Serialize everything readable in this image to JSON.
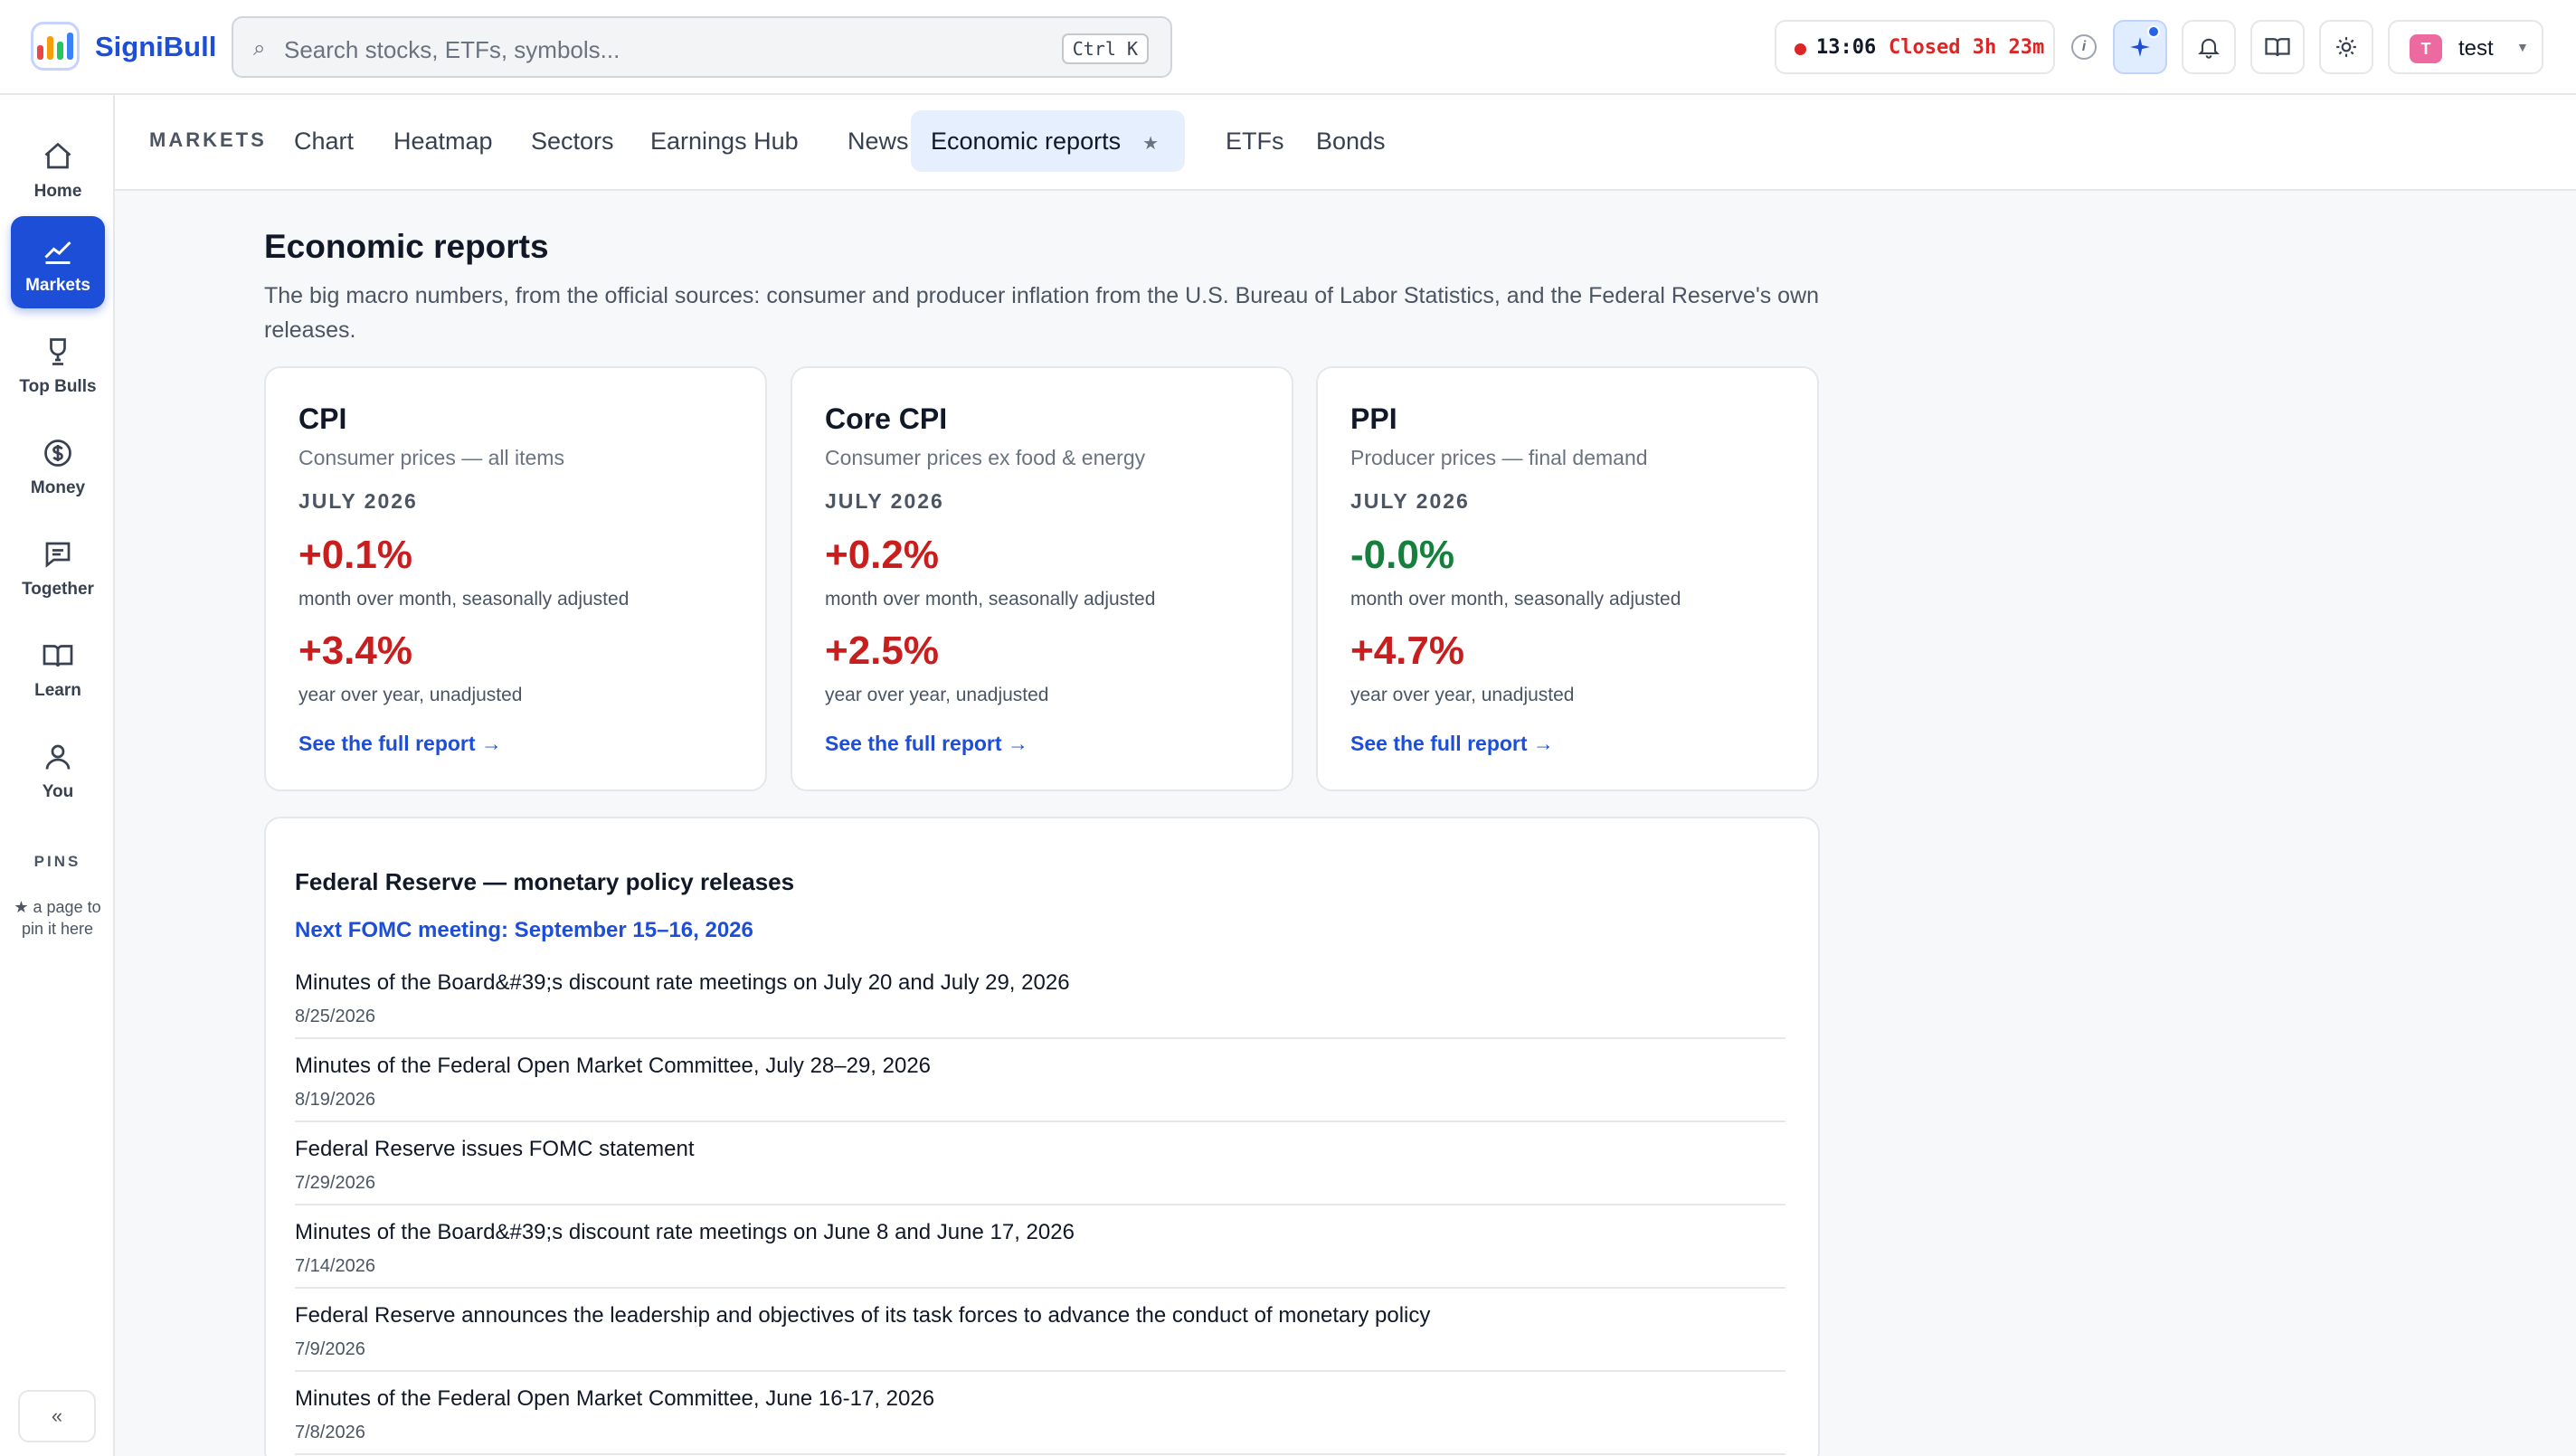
{
  "app": {
    "name": "SigniBull"
  },
  "search": {
    "placeholder": "Search stocks, ETFs, symbols...",
    "shortcut": "Ctrl K"
  },
  "market_clock": {
    "time": "13:06",
    "status": "Closed 3h 23m",
    "status_color": "#dc2626"
  },
  "user": {
    "initial": "T",
    "name": "test"
  },
  "sidebar": {
    "items": [
      {
        "label": "Home",
        "icon": "home-icon"
      },
      {
        "label": "Markets",
        "icon": "chart-line-icon",
        "active": true
      },
      {
        "label": "Top Bulls",
        "icon": "trophy-icon"
      },
      {
        "label": "Money",
        "icon": "dollar-circle-icon"
      },
      {
        "label": "Together",
        "icon": "chat-icon"
      },
      {
        "label": "Learn",
        "icon": "book-icon"
      },
      {
        "label": "You",
        "icon": "user-icon"
      }
    ],
    "pins_title": "PINS",
    "pins_hint": "★ a page to pin it here",
    "collapse_label": "«"
  },
  "tabs": {
    "section": "MARKETS",
    "items": [
      {
        "label": "Chart"
      },
      {
        "label": "Heatmap"
      },
      {
        "label": "Sectors"
      },
      {
        "label": "Earnings Hub"
      },
      {
        "label": "News"
      },
      {
        "label": "Economic reports",
        "active": true
      },
      {
        "label": "ETFs"
      },
      {
        "label": "Bonds"
      }
    ],
    "pin_star": "★"
  },
  "page": {
    "title": "Economic reports",
    "description": "The big macro numbers, from the official sources: consumer and producer inflation from the U.S. Bureau of Labor Statistics, and the Federal Reserve's own releases."
  },
  "cards": [
    {
      "title": "CPI",
      "subtitle": "Consumer prices — all items",
      "period": "JULY 2026",
      "mom": "+0.1%",
      "mom_note": "month over month, seasonally adjusted",
      "yoy": "+3.4%",
      "yoy_note": "year over year, unadjusted",
      "link": "See the full report →"
    },
    {
      "title": "Core CPI",
      "subtitle": "Consumer prices ex food & energy",
      "period": "JULY 2026",
      "mom": "+0.2%",
      "mom_note": "month over month, seasonally adjusted",
      "yoy": "+2.5%",
      "yoy_note": "year over year, unadjusted",
      "link": "See the full report →"
    },
    {
      "title": "PPI",
      "subtitle": "Producer prices — final demand",
      "period": "JULY 2026",
      "mom": "-0.0%",
      "mom_note": "month over month, seasonally adjusted",
      "yoy": "+4.7%",
      "yoy_note": "year over year, unadjusted",
      "link": "See the full report →"
    }
  ],
  "colors": {
    "up": "#c81e1e",
    "down": "#15803d",
    "accent": "#1d4ed8"
  },
  "fed": {
    "title": "Federal Reserve — monetary policy releases",
    "next_meeting": "Next FOMC meeting: September 15–16, 2026",
    "releases": [
      {
        "title": "Minutes of the Board&#39;s discount rate meetings on July 20 and July 29, 2026",
        "date": "8/25/2026"
      },
      {
        "title": "Minutes of the Federal Open Market Committee, July 28–29, 2026",
        "date": "8/19/2026"
      },
      {
        "title": "Federal Reserve issues FOMC statement",
        "date": "7/29/2026"
      },
      {
        "title": "Minutes of the Board&#39;s discount rate meetings on June 8 and June 17, 2026",
        "date": "7/14/2026"
      },
      {
        "title": "Federal Reserve announces the leadership and objectives of its task forces to advance the conduct of monetary policy",
        "date": "7/9/2026"
      },
      {
        "title": "Minutes of the Federal Open Market Committee, June 16-17, 2026",
        "date": "7/8/2026"
      }
    ]
  }
}
